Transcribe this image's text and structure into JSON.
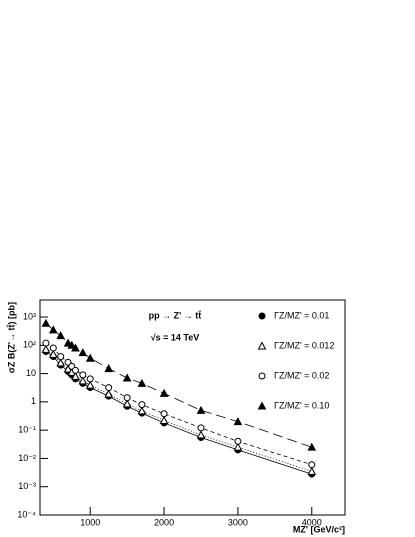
{
  "chart_data": {
    "type": "line",
    "x_label": "MZ' [GeV/c²]",
    "y_label": "σZ B(Z'→ tt̄) [pb]",
    "annotations": [
      "pp → Z' → tt̄",
      "√s = 14 TeV"
    ],
    "x": [
      400,
      500,
      600,
      700,
      750,
      800,
      900,
      1000,
      1250,
      1500,
      1700,
      2000,
      2500,
      3000,
      4000
    ],
    "series": [
      {
        "name": "ΓZ/MZ' = 0.01",
        "color": "#000000",
        "marker": "filled-circle",
        "dash": "solid",
        "values": [
          60,
          40,
          20,
          12,
          9,
          6.5,
          4.5,
          3.2,
          1.6,
          0.7,
          0.4,
          0.18,
          0.055,
          0.02,
          0.0028
        ]
      },
      {
        "name": "ΓZ/MZ' = 0.012",
        "color": "#000000",
        "marker": "open-triangle",
        "dash": "dotted",
        "values": [
          72,
          48,
          24,
          14.5,
          11,
          8,
          5.5,
          3.9,
          1.9,
          0.85,
          0.48,
          0.22,
          0.068,
          0.025,
          0.0035
        ]
      },
      {
        "name": "ΓZ/MZ' = 0.02",
        "color": "#000000",
        "marker": "open-circle",
        "dash": "dashed",
        "values": [
          120,
          80,
          40,
          25,
          18,
          13,
          9,
          6.5,
          3.2,
          1.4,
          0.8,
          0.38,
          0.12,
          0.04,
          0.006
        ]
      },
      {
        "name": "ΓZ/MZ' = 0.10",
        "color": "#000000",
        "marker": "filled-triangle",
        "dash": "long-dashed",
        "values": [
          600,
          350,
          220,
          120,
          100,
          80,
          55,
          35,
          15,
          7,
          4.5,
          2,
          0.5,
          0.2,
          0.025
        ]
      }
    ],
    "xlim": [
      320,
      4450
    ],
    "xticks": [
      1000,
      2000,
      3000,
      4000
    ],
    "ylim": [
      0.0001,
      4000
    ],
    "log_y": true,
    "yticks": [
      {
        "value": 0.0001,
        "label": "10⁻⁴"
      },
      {
        "value": 0.001,
        "label": "10⁻³"
      },
      {
        "value": 0.01,
        "label": "10⁻²"
      },
      {
        "value": 0.1,
        "label": "10⁻¹"
      },
      1,
      10,
      {
        "value": 100,
        "label": "10²"
      },
      {
        "value": 1000,
        "label": "10³"
      }
    ],
    "legend": "top-right",
    "grid": false
  }
}
